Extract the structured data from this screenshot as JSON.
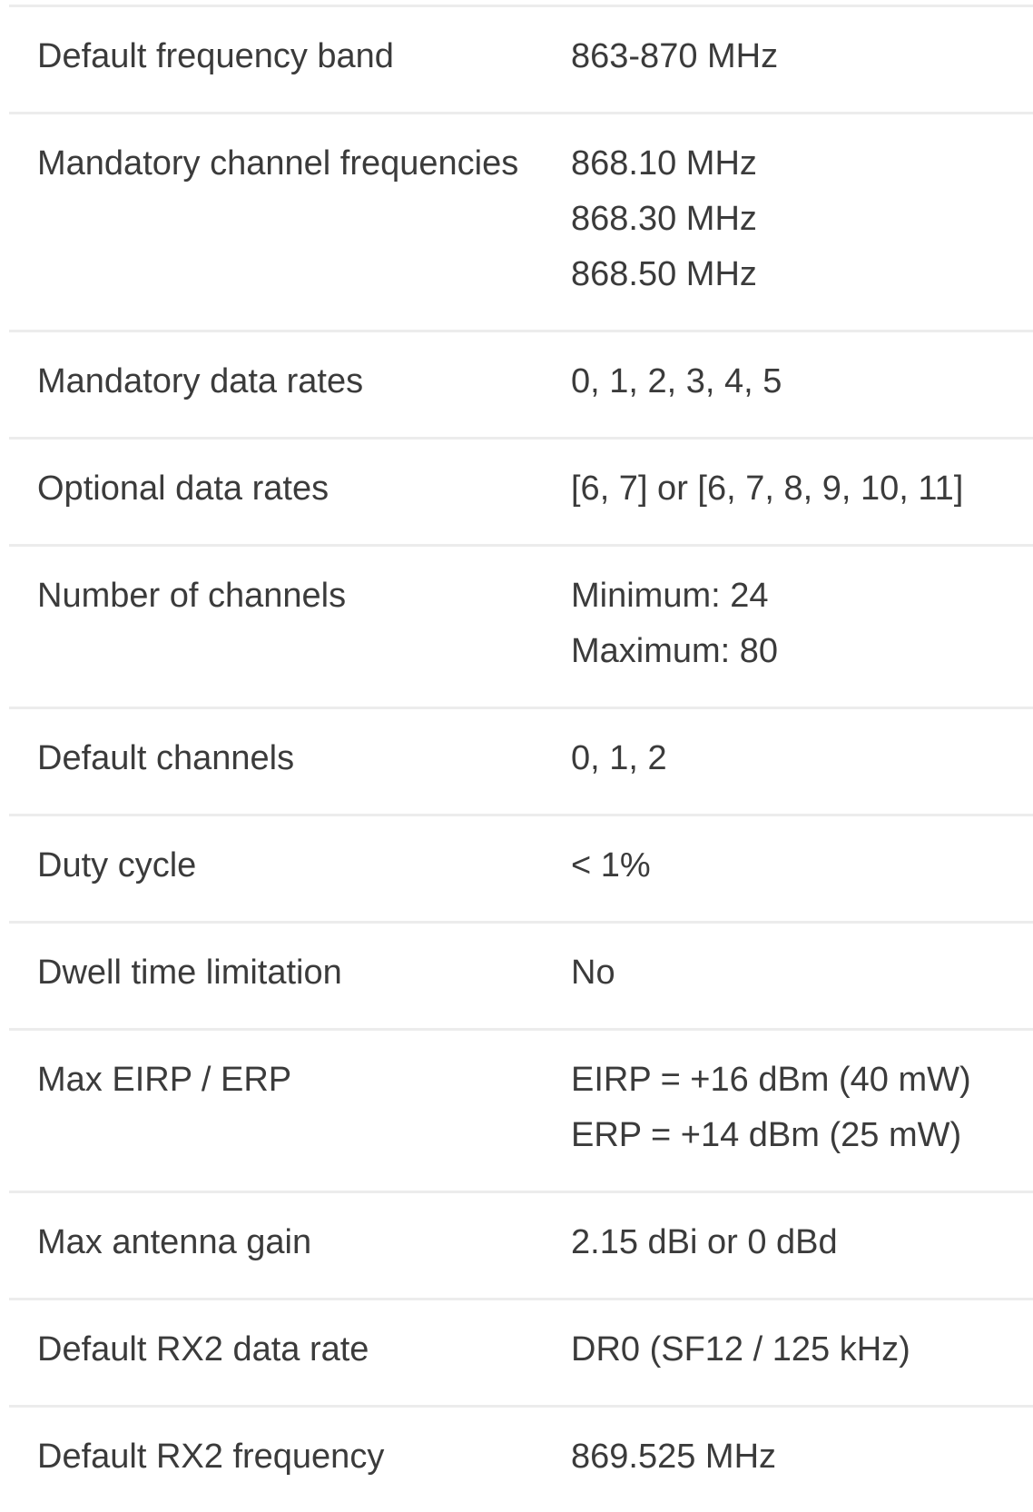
{
  "rows": [
    {
      "label": "Default frequency band",
      "values": [
        "863-870 MHz"
      ]
    },
    {
      "label": "Mandatory channel frequencies",
      "values": [
        "868.10 MHz",
        "868.30 MHz",
        "868.50 MHz"
      ]
    },
    {
      "label": "Mandatory data rates",
      "values": [
        "0, 1, 2, 3, 4, 5"
      ]
    },
    {
      "label": "Optional data rates",
      "values": [
        "[6, 7] or [6, 7, 8, 9, 10, 11]"
      ]
    },
    {
      "label": "Number of channels",
      "values": [
        "Minimum: 24",
        "Maximum: 80"
      ]
    },
    {
      "label": "Default channels",
      "values": [
        "0, 1, 2"
      ]
    },
    {
      "label": "Duty cycle",
      "values": [
        "< 1%"
      ]
    },
    {
      "label": "Dwell time limitation",
      "values": [
        "No"
      ]
    },
    {
      "label": "Max EIRP / ERP",
      "values": [
        "EIRP = +16 dBm (40 mW)",
        "ERP = +14 dBm (25 mW)"
      ]
    },
    {
      "label": "Max antenna gain",
      "values": [
        "2.15 dBi or 0 dBd"
      ]
    },
    {
      "label": "Default RX2 data rate",
      "values": [
        "DR0 (SF12 / 125 kHz)"
      ]
    },
    {
      "label": "Default RX2 frequency",
      "values": [
        "869.525 MHz"
      ]
    }
  ]
}
